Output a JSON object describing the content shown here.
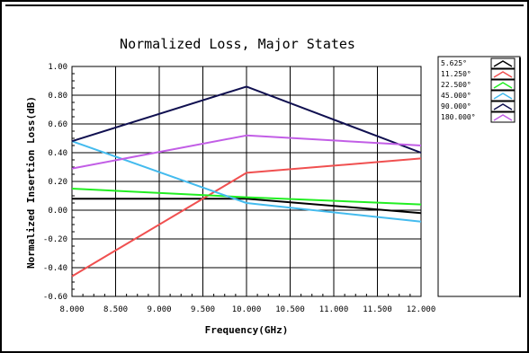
{
  "chart_data": {
    "type": "line",
    "title": "Normalized Loss, Major States",
    "xlabel": "Frequency(GHz)",
    "ylabel": "Normalized Insertion Loss(dB)",
    "xlim": [
      8.0,
      12.0
    ],
    "ylim": [
      -0.6,
      1.0
    ],
    "xticks": [
      8.0,
      8.5,
      9.0,
      9.5,
      10.0,
      10.5,
      11.0,
      11.5,
      12.0
    ],
    "xtick_labels": [
      "8.000",
      "8.500",
      "9.000",
      "9.500",
      "10.000",
      "10.500",
      "11.000",
      "11.500",
      "12.000"
    ],
    "yticks": [
      -0.6,
      -0.4,
      -0.2,
      0.0,
      0.2,
      0.4,
      0.6,
      0.8,
      1.0
    ],
    "ytick_labels": [
      "-0.60",
      "-0.40",
      "-0.20",
      "0.00",
      "0.20",
      "0.40",
      "0.60",
      "0.80",
      "1.00"
    ],
    "grid": true,
    "legend_position": "right",
    "series": [
      {
        "name": "5.625°",
        "color": "#000000",
        "x": [
          8.0,
          10.0,
          12.0
        ],
        "y": [
          0.08,
          0.08,
          -0.02
        ]
      },
      {
        "name": "11.250°",
        "color": "#f05050",
        "x": [
          8.0,
          10.0,
          12.0
        ],
        "y": [
          -0.46,
          0.26,
          0.36
        ]
      },
      {
        "name": "22.500°",
        "color": "#22ee22",
        "x": [
          8.0,
          10.0,
          12.0
        ],
        "y": [
          0.15,
          0.09,
          0.04
        ]
      },
      {
        "name": "45.000°",
        "color": "#44bbee",
        "x": [
          8.0,
          10.0,
          12.0
        ],
        "y": [
          0.48,
          0.05,
          -0.08
        ]
      },
      {
        "name": "90.000°",
        "color": "#101050",
        "x": [
          8.0,
          10.0,
          12.0
        ],
        "y": [
          0.48,
          0.86,
          0.4
        ]
      },
      {
        "name": "180.000°",
        "color": "#c25ee6",
        "x": [
          8.0,
          10.0,
          12.0
        ],
        "y": [
          0.29,
          0.52,
          0.45
        ]
      }
    ]
  }
}
